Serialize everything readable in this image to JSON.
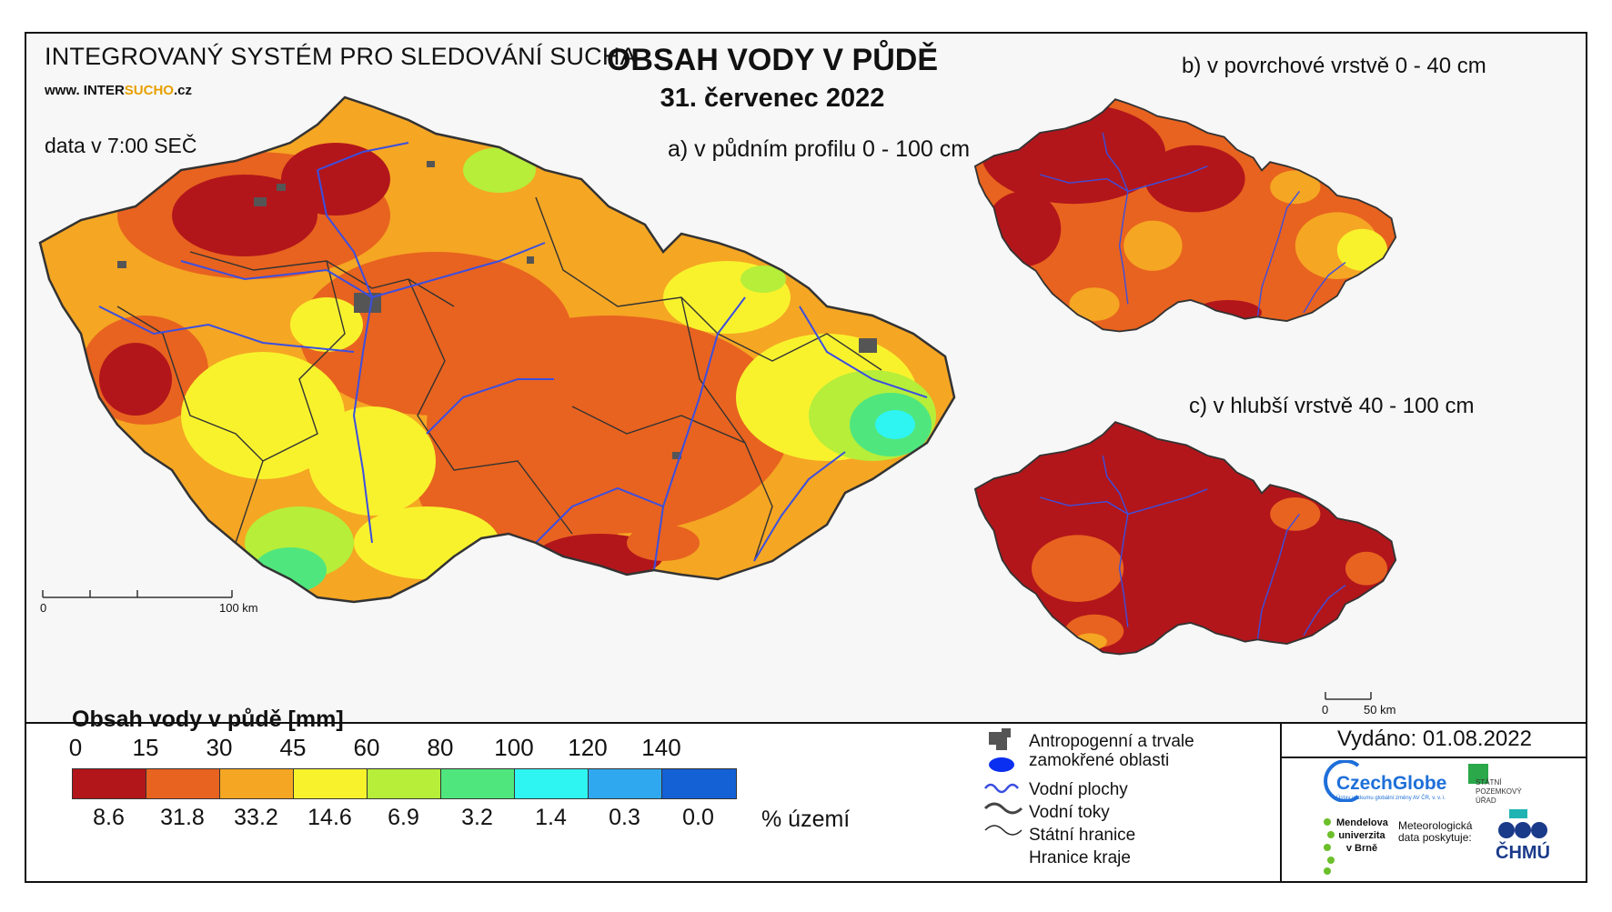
{
  "header": {
    "system_title": "INTEGROVANÝ SYSTÉM PRO SLEDOVÁNÍ SUCHA",
    "url_prefix": "www. INTER",
    "url_highlight": "SUCHO",
    "url_suffix": ".cz",
    "data_time": "data v 7:00 SEČ",
    "main_title": "OBSAH VODY V PŮDĚ",
    "date": "31. červenec 2022"
  },
  "panels": {
    "a": "a) v půdním profilu 0 - 100 cm",
    "b": "b) v povrchové vrstvě 0 - 40 cm",
    "c": "c) v hlubší vrstvě 40 - 100 cm"
  },
  "scalebars": {
    "main_start": "0",
    "main_end": "100 km",
    "small_start": "0",
    "small_end": "50 km"
  },
  "legend": {
    "title": "Obsah vody v půdě  [mm]",
    "ticks": [
      "0",
      "15",
      "30",
      "45",
      "60",
      "80",
      "100",
      "120",
      "140"
    ],
    "colors": [
      "#b2161b",
      "#e8631f",
      "#f5a623",
      "#f8f22d",
      "#b6ee3a",
      "#50e67e",
      "#2ef4f2",
      "#30a8f0",
      "#1461d6"
    ],
    "percentages": [
      "8.6",
      "31.8",
      "33.2",
      "14.6",
      "6.9",
      "3.2",
      "1.4",
      "0.3",
      "0.0"
    ],
    "percent_unit": "% území"
  },
  "symbols": {
    "anthropogenic": "Antropogenní a trvale zamokřené oblasti",
    "water_bodies": "Vodní plochy",
    "water_streams": "Vodní toky",
    "state_border": "Státní hranice",
    "region_border": "Hranice kraje"
  },
  "issued": "Vydáno: 01.08.2022",
  "logos": {
    "czechglobe": "CzechGlobe",
    "czechglobe_sub": "Ústav výzkumu globální změny AV ČR, v. v. i.",
    "spu": "STÁTNÍ POZEMKOVÝ ÚŘAD",
    "mendelu": "Mendelova univerzita v Brně",
    "met_data": "Meteorologická data poskytuje:",
    "chmu": "ČHMÚ"
  }
}
